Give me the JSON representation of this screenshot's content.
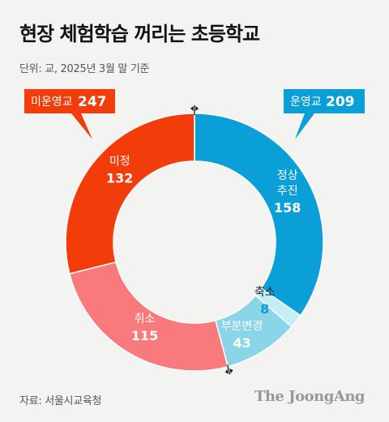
{
  "title": "현장 체험학습 꺼리는 초등학교",
  "subtitle": "단위: 교, 2025년 3월 말 기준",
  "source": "자료: 서울시교육청",
  "brand": "The JoongAng",
  "chart_data": {
    "type": "pie",
    "donut": true,
    "groups": [
      {
        "name": "미운영교",
        "total": 247,
        "color": "#f23d0a"
      },
      {
        "name": "운영교",
        "total": 209,
        "color": "#0a9fd6"
      }
    ],
    "slices": [
      {
        "label": [
          "정상",
          "추진"
        ],
        "value": 158,
        "group": "운영교",
        "color": "#0a9fd6"
      },
      {
        "label": [
          "축소"
        ],
        "value": 8,
        "group": "운영교",
        "color": "#c5edf6"
      },
      {
        "label": [
          "부분변경"
        ],
        "value": 43,
        "group": "운영교",
        "color": "#8ad6e8"
      },
      {
        "label": [
          "취소"
        ],
        "value": 115,
        "group": "미운영교",
        "color": "#f87a7d"
      },
      {
        "label": [
          "미정"
        ],
        "value": 132,
        "group": "미운영교",
        "color": "#f23d0a"
      }
    ]
  }
}
